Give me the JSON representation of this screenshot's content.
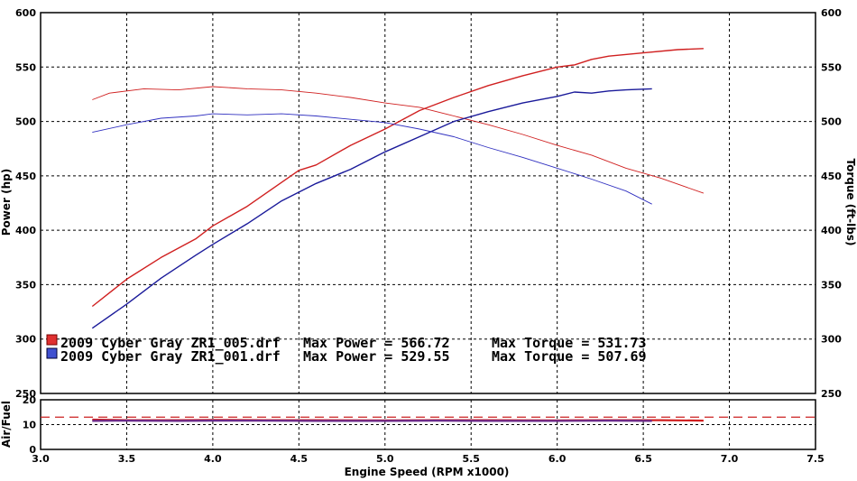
{
  "chart_data": [
    {
      "type": "line",
      "xlabel": "Engine Speed (RPM x1000)",
      "ylabel": "Power (hp)",
      "y2label": "Torque (ft-lbs)",
      "xlim": [
        3.0,
        7.5
      ],
      "ylim": [
        250,
        600
      ],
      "y2lim": [
        250,
        600
      ],
      "x_ticks": [
        "3.0",
        "3.5",
        "4.0",
        "4.5",
        "5.0",
        "5.5",
        "6.0",
        "6.5",
        "7.0",
        "7.5"
      ],
      "y_ticks": [
        "250",
        "300",
        "350",
        "400",
        "450",
        "500",
        "550",
        "600"
      ],
      "grid": true,
      "legend": {
        "entries": [
          {
            "file": "2009 Cyber Gray ZR1_005.drf",
            "power_text": "Max Power = 566.72",
            "torque_text": "Max Torque = 531.73",
            "color": "#d02020"
          },
          {
            "file": "2009 Cyber Gray ZR1_001.drf",
            "power_text": "Max Power = 529.55",
            "torque_text": "Max Torque = 507.69",
            "color": "#2020b0"
          }
        ]
      },
      "series": [
        {
          "name": "2009 Cyber Gray ZR1_005.drf",
          "kind": "power",
          "color": "#d02020",
          "x": [
            3.3,
            3.5,
            3.7,
            3.9,
            4.0,
            4.2,
            4.4,
            4.5,
            4.6,
            4.8,
            5.0,
            5.2,
            5.4,
            5.6,
            5.8,
            6.0,
            6.1,
            6.2,
            6.3,
            6.5,
            6.7,
            6.85
          ],
          "y": [
            330,
            355,
            375,
            392,
            404,
            422,
            444,
            455,
            460,
            478,
            493,
            510,
            522,
            533,
            542,
            550,
            552,
            557,
            560,
            563,
            566,
            567
          ]
        },
        {
          "name": "2009 Cyber Gray ZR1_005.drf",
          "kind": "torque",
          "color": "#d02020",
          "x": [
            3.3,
            3.4,
            3.6,
            3.8,
            4.0,
            4.2,
            4.4,
            4.6,
            4.8,
            5.0,
            5.2,
            5.4,
            5.6,
            5.8,
            6.0,
            6.2,
            6.4,
            6.6,
            6.85
          ],
          "y": [
            520,
            526,
            530,
            529,
            532,
            530,
            529,
            526,
            522,
            517,
            513,
            505,
            497,
            488,
            478,
            469,
            457,
            448,
            434
          ]
        },
        {
          "name": "2009 Cyber Gray ZR1_001.drf",
          "kind": "power",
          "color": "#1a1a9a",
          "x": [
            3.3,
            3.5,
            3.7,
            3.9,
            4.0,
            4.2,
            4.4,
            4.6,
            4.8,
            5.0,
            5.2,
            5.4,
            5.6,
            5.8,
            6.0,
            6.1,
            6.2,
            6.3,
            6.4,
            6.55
          ],
          "y": [
            310,
            332,
            356,
            377,
            387,
            406,
            427,
            443,
            456,
            472,
            486,
            500,
            509,
            517,
            523,
            527,
            526,
            528,
            529,
            530
          ]
        },
        {
          "name": "2009 Cyber Gray ZR1_001.drf",
          "kind": "torque",
          "color": "#3030c0",
          "x": [
            3.3,
            3.5,
            3.7,
            3.9,
            4.0,
            4.2,
            4.4,
            4.6,
            4.8,
            5.0,
            5.2,
            5.4,
            5.6,
            5.8,
            6.0,
            6.2,
            6.4,
            6.55
          ],
          "y": [
            490,
            497,
            503,
            505,
            507,
            506,
            507,
            505,
            502,
            499,
            493,
            486,
            476,
            467,
            457,
            447,
            436,
            424
          ]
        }
      ]
    },
    {
      "type": "line",
      "xlabel": "",
      "ylabel": "Air/Fuel",
      "xlim": [
        3.0,
        7.5
      ],
      "ylim": [
        0,
        20
      ],
      "y_ticks": [
        "0",
        "10",
        "20"
      ],
      "grid": true,
      "reference_line": {
        "y": 13.0,
        "color": "#cc2020",
        "style": "dashed"
      },
      "series": [
        {
          "name": "2009 Cyber Gray ZR1_005.drf",
          "color": "#d02020",
          "x": [
            3.3,
            3.5,
            3.8,
            4.0,
            4.3,
            4.6,
            5.0,
            5.3,
            5.6,
            6.0,
            6.3,
            6.6,
            6.85
          ],
          "y": [
            12.0,
            11.8,
            11.8,
            11.9,
            11.8,
            11.8,
            11.7,
            11.8,
            11.8,
            11.7,
            11.8,
            11.8,
            11.6
          ]
        },
        {
          "name": "2009 Cyber Gray ZR1_001.drf",
          "color": "#6a2a8a",
          "x": [
            3.3,
            3.5,
            3.8,
            4.0,
            4.3,
            4.6,
            5.0,
            5.3,
            5.6,
            6.0,
            6.3,
            6.55
          ],
          "y": [
            11.5,
            11.6,
            11.5,
            11.6,
            11.6,
            11.5,
            11.5,
            11.6,
            11.5,
            11.5,
            11.6,
            11.5
          ]
        }
      ]
    }
  ]
}
